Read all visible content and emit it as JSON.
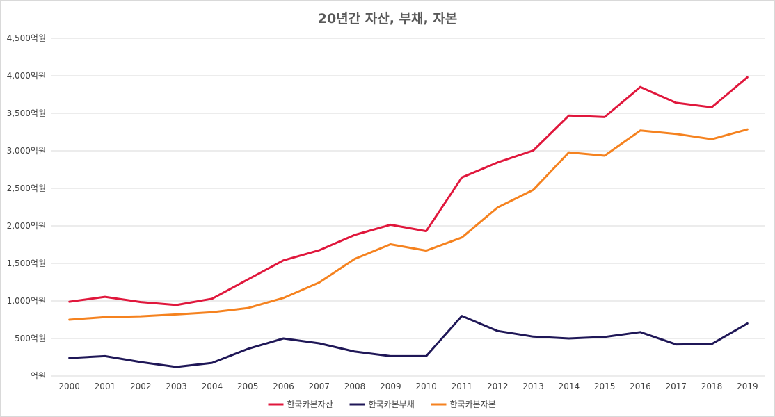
{
  "chart_data": {
    "type": "line",
    "title": "20년간 자산, 부채, 자본",
    "x": [
      "2000",
      "2001",
      "2002",
      "2003",
      "2004",
      "2005",
      "2006",
      "2007",
      "2008",
      "2009",
      "2010",
      "2011",
      "2012",
      "2013",
      "2014",
      "2015",
      "2016",
      "2017",
      "2018",
      "2019"
    ],
    "y_ticks": [
      "억원",
      "500억원",
      "1,000억원",
      "1,500억원",
      "2,000억원",
      "2,500억원",
      "3,000억원",
      "3,500억원",
      "4,000억원",
      "4,500억원"
    ],
    "ylim": [
      0,
      4500
    ],
    "grid": true,
    "legend_position": "bottom",
    "series": [
      {
        "name": "한국카본자산",
        "color": "#e0173c",
        "values": [
          990,
          1055,
          985,
          945,
          1030,
          1285,
          1540,
          1675,
          1880,
          2015,
          1930,
          2645,
          2845,
          3005,
          3470,
          3450,
          3850,
          3640,
          3580,
          3980
        ]
      },
      {
        "name": "한국카본부채",
        "color": "#1f1757",
        "values": [
          240,
          265,
          185,
          120,
          175,
          360,
          500,
          435,
          325,
          265,
          265,
          800,
          600,
          525,
          500,
          520,
          585,
          420,
          425,
          700
        ]
      },
      {
        "name": "한국카본자본",
        "color": "#f5821f",
        "values": [
          750,
          785,
          795,
          820,
          850,
          905,
          1040,
          1245,
          1560,
          1755,
          1670,
          1845,
          2245,
          2480,
          2980,
          2935,
          3270,
          3225,
          3155,
          3285
        ]
      }
    ]
  }
}
